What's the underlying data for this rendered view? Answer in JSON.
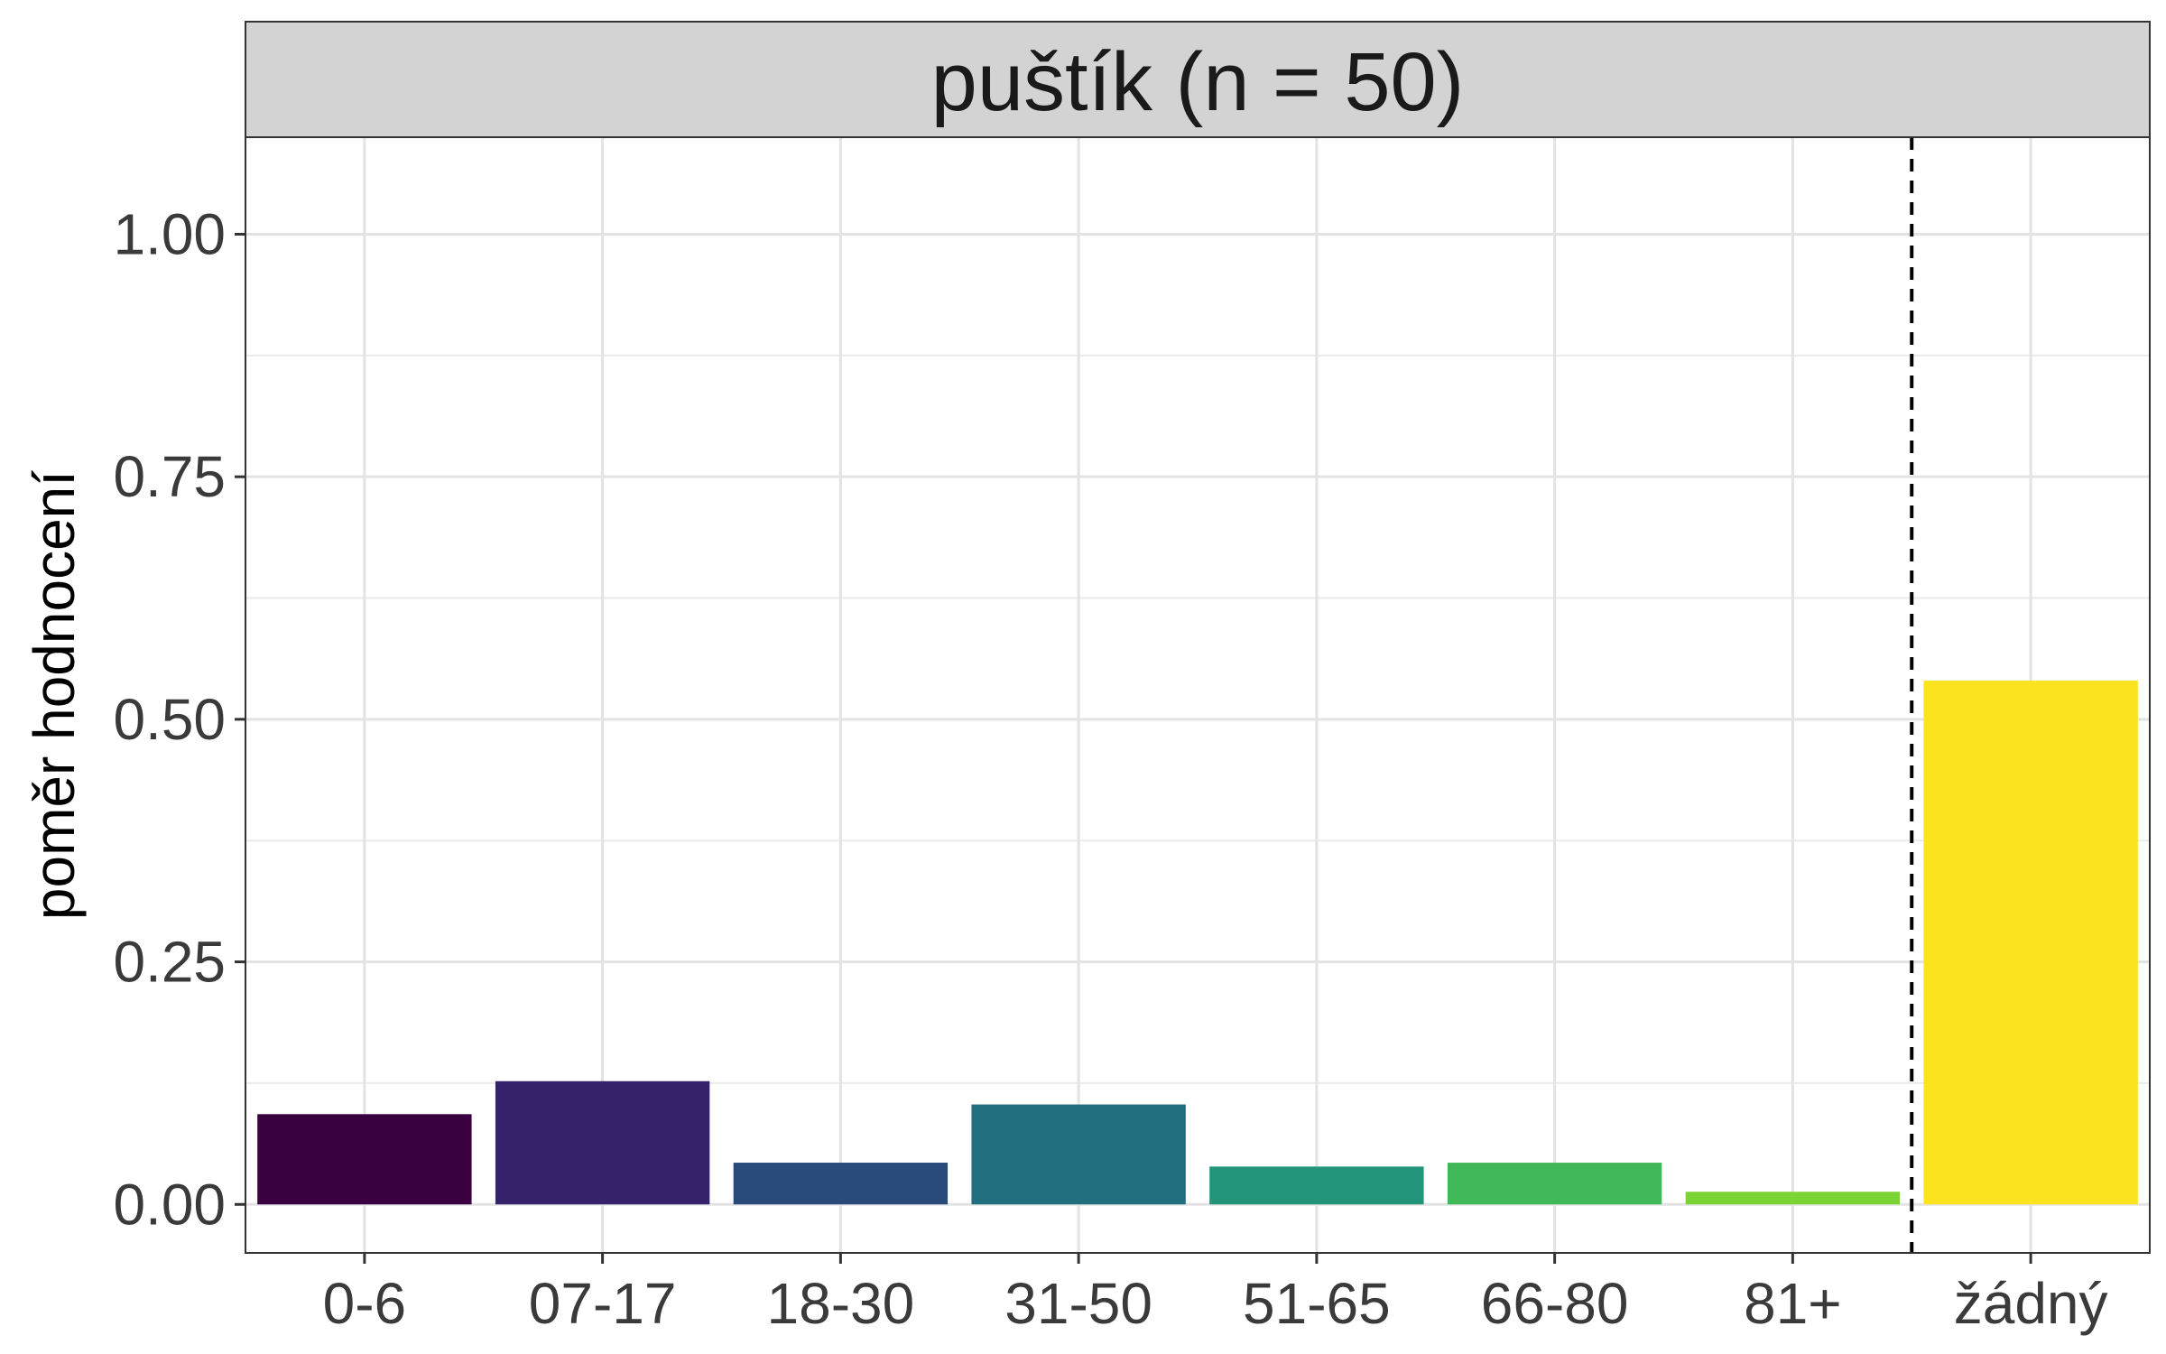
{
  "chart_data": {
    "type": "bar",
    "title": "puštík (n = 50)",
    "xlabel": "",
    "ylabel": "poměr hodnocení",
    "ylim": [
      -0.05,
      1.1
    ],
    "yticks": [
      "0.00",
      "0.25",
      "0.50",
      "0.75",
      "1.00"
    ],
    "ytick_values": [
      0,
      0.25,
      0.5,
      0.75,
      1.0
    ],
    "categories": [
      "0-6",
      "07-17",
      "18-30",
      "31-50",
      "51-65",
      "66-80",
      "81+",
      "žádný"
    ],
    "values": [
      0.093,
      0.127,
      0.043,
      0.103,
      0.039,
      0.043,
      0.013,
      0.54
    ],
    "colors": [
      "#3a0040",
      "#36216b",
      "#2a4a7c",
      "#216f7e",
      "#21947a",
      "#41b857",
      "#7bd433",
      "#fbe31f"
    ],
    "reference_line": {
      "between": [
        "81+",
        "žádný"
      ],
      "style": "dashed"
    },
    "grid": true,
    "legend": "none"
  }
}
